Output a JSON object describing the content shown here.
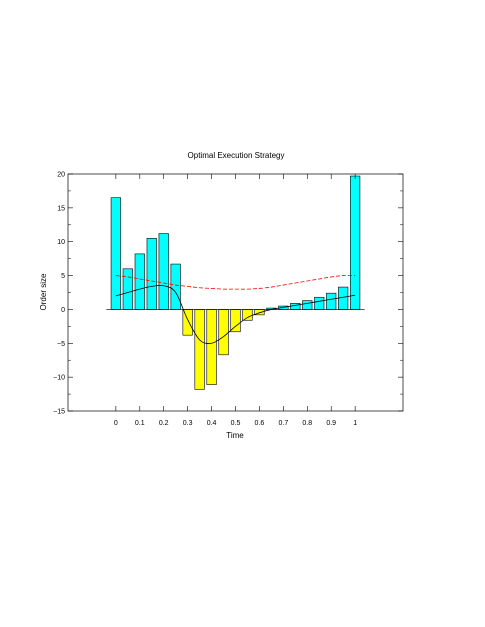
{
  "chart_data": {
    "type": "bar",
    "title": "Optimal Execution Strategy",
    "xlabel": "Time",
    "ylabel": "Order size",
    "xlim": [
      -0.2,
      1.2
    ],
    "ylim": [
      -15,
      20
    ],
    "xticks": [
      0,
      0.1,
      0.2,
      0.3,
      0.4,
      0.5,
      0.6,
      0.7,
      0.8,
      0.9,
      1
    ],
    "xtick_labels": [
      "0",
      "0.1",
      "0.2",
      "0.3",
      "0.4",
      "0.5",
      "0.6",
      "0.7",
      "0.8",
      "0.9",
      "1"
    ],
    "yticks": [
      -15,
      -10,
      -5,
      0,
      5,
      10,
      15,
      20
    ],
    "ytick_labels": [
      "−15",
      "−10",
      "−5",
      "0",
      "5",
      "10",
      "15",
      "20"
    ],
    "grid": false,
    "bar_width": 0.04,
    "bars": {
      "x": [
        0,
        0.05,
        0.1,
        0.15,
        0.2,
        0.25,
        0.3,
        0.35,
        0.4,
        0.45,
        0.5,
        0.55,
        0.6,
        0.65,
        0.7,
        0.75,
        0.8,
        0.85,
        0.9,
        0.95,
        1.0
      ],
      "values": [
        16.5,
        6.0,
        8.2,
        10.5,
        11.2,
        6.7,
        -3.8,
        -11.8,
        -11.1,
        -6.7,
        -3.3,
        -1.6,
        -0.8,
        0.2,
        0.5,
        0.9,
        1.3,
        1.8,
        2.4,
        3.3,
        19.7
      ],
      "positive_color": "#00ffff",
      "negative_color": "#ffff00",
      "edge_color": "#000000"
    },
    "series": [
      {
        "style": "solid",
        "color": "#000000",
        "x": [
          0,
          0.05,
          0.1,
          0.15,
          0.2,
          0.25,
          0.3,
          0.35,
          0.4,
          0.45,
          0.5,
          0.55,
          0.6,
          0.65,
          0.7,
          0.75,
          0.8,
          0.85,
          0.9,
          0.95,
          1.0
        ],
        "values": [
          2.0,
          2.5,
          3.0,
          3.4,
          3.5,
          2.5,
          -1.5,
          -4.5,
          -5.0,
          -4.0,
          -2.5,
          -1.2,
          -0.5,
          0.0,
          0.3,
          0.6,
          0.9,
          1.2,
          1.5,
          1.8,
          2.1
        ]
      },
      {
        "style": "dashed",
        "color": "#ff0000",
        "x": [
          0,
          0.05,
          0.1,
          0.15,
          0.2,
          0.25,
          0.3,
          0.35,
          0.4,
          0.45,
          0.5,
          0.55,
          0.6,
          0.65,
          0.7,
          0.75,
          0.8,
          0.85,
          0.9,
          0.95,
          1.0
        ],
        "values": [
          5.0,
          4.8,
          4.5,
          4.2,
          3.9,
          3.6,
          3.4,
          3.2,
          3.1,
          3.0,
          3.0,
          3.0,
          3.1,
          3.3,
          3.6,
          3.9,
          4.2,
          4.5,
          4.8,
          5.0,
          5.0
        ]
      }
    ]
  }
}
